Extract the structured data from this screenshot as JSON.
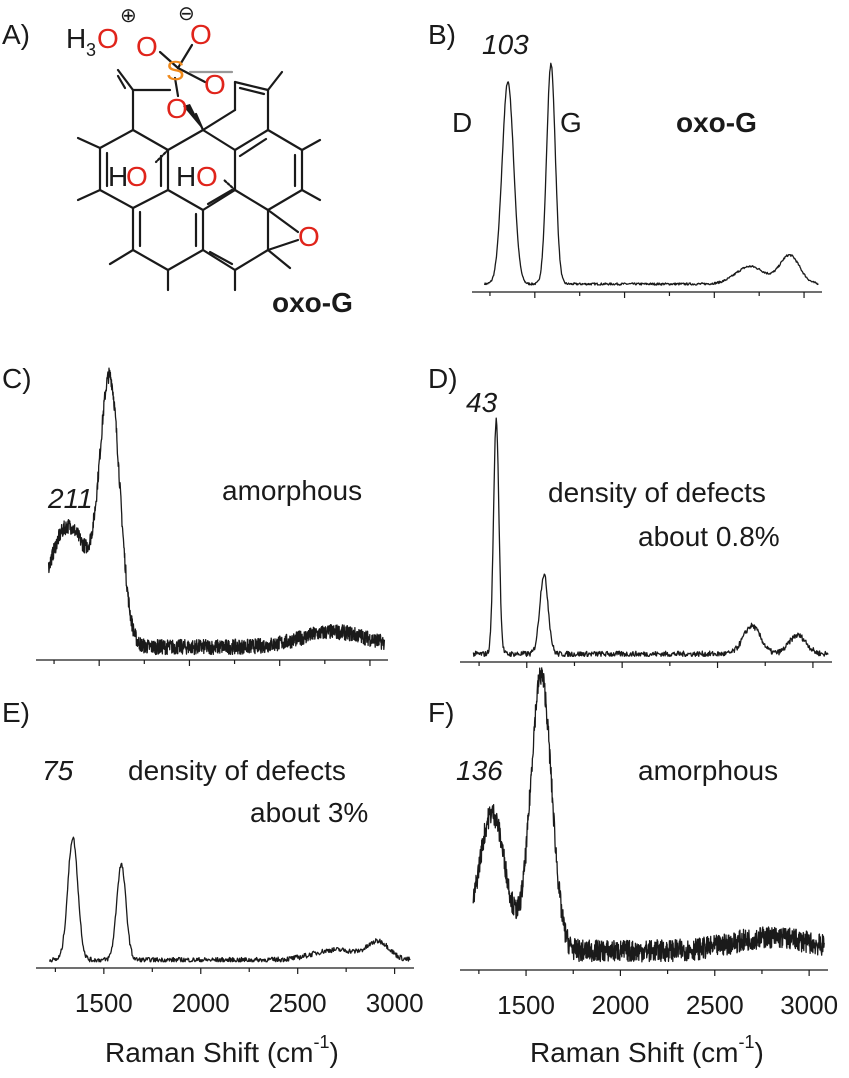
{
  "figure": {
    "panelA": {
      "letter": "A)",
      "h3o_prefix": "H",
      "h3o_sub": "3",
      "h3o_o": "O",
      "plus_sign": "⊕",
      "minus_sign": "⊖",
      "atom_O": "O",
      "atom_S": "S",
      "atom_H": "H",
      "caption": "oxo-G"
    },
    "panelB": {
      "letter": "B)",
      "ratio": "103",
      "d_label": "D",
      "g_label": "G",
      "caption": "oxo-G"
    },
    "panelC": {
      "letter": "C)",
      "ratio": "211",
      "caption": "amorphous"
    },
    "panelD": {
      "letter": "D)",
      "ratio": "43",
      "caption_line1": "density of defects",
      "caption_line2": "about 0.8%"
    },
    "panelE": {
      "letter": "E)",
      "ratio": "75",
      "caption_line1": "density of defects",
      "caption_line2": "about 3%"
    },
    "panelF": {
      "letter": "F)",
      "ratio": "136",
      "caption": "amorphous"
    },
    "x_axis": {
      "ticks": [
        "1500",
        "2000",
        "2500",
        "3000"
      ],
      "label_prefix": "Raman Shift (cm",
      "label_sup": "-1",
      "label_suffix": ")"
    },
    "line_color": "#1a1a1a",
    "oxygen_color": "#e0241b",
    "sulfur_color": "#f08a1c"
  },
  "chart_data": [
    {
      "type": "line",
      "panel": "B",
      "xlim": [
        1150,
        3100
      ],
      "x_unit": "cm-1",
      "peaks": [
        {
          "x": 1350,
          "height": 0.92,
          "width": 32
        },
        {
          "x": 1590,
          "height": 1.0,
          "width": 24
        },
        {
          "x": 2700,
          "height": 0.08,
          "width": 80
        },
        {
          "x": 2920,
          "height": 0.13,
          "width": 55
        }
      ],
      "noise": 0.005,
      "baseline": 0.0
    },
    {
      "type": "line",
      "panel": "C",
      "xlim": [
        1150,
        3100
      ],
      "x_unit": "cm-1",
      "peaks": [
        {
          "x": 1330,
          "height": 0.48,
          "width": 120
        },
        {
          "x": 1560,
          "height": 1.0,
          "width": 55
        },
        {
          "x": 2800,
          "height": 0.06,
          "width": 180
        }
      ],
      "noise": 0.03,
      "baseline": 0.02
    },
    {
      "type": "line",
      "panel": "D",
      "xlim": [
        1150,
        3100
      ],
      "x_unit": "cm-1",
      "peaks": [
        {
          "x": 1340,
          "height": 1.0,
          "width": 14
        },
        {
          "x": 1590,
          "height": 0.34,
          "width": 22
        },
        {
          "x": 2680,
          "height": 0.12,
          "width": 45
        },
        {
          "x": 2920,
          "height": 0.08,
          "width": 45
        }
      ],
      "noise": 0.012,
      "baseline": 0.0
    },
    {
      "type": "line",
      "panel": "E",
      "xlim": [
        1150,
        3100
      ],
      "x_unit": "cm-1",
      "peaks": [
        {
          "x": 1340,
          "height": 0.72,
          "width": 26
        },
        {
          "x": 1590,
          "height": 0.56,
          "width": 24
        },
        {
          "x": 2700,
          "height": 0.06,
          "width": 120
        },
        {
          "x": 2920,
          "height": 0.1,
          "width": 55
        }
      ],
      "noise": 0.015,
      "baseline": 0.0
    },
    {
      "type": "line",
      "panel": "F",
      "xlim": [
        1150,
        3100
      ],
      "x_unit": "cm-1",
      "peaks": [
        {
          "x": 1320,
          "height": 0.5,
          "width": 70
        },
        {
          "x": 1580,
          "height": 1.0,
          "width": 55
        },
        {
          "x": 2800,
          "height": 0.05,
          "width": 200
        }
      ],
      "noise": 0.04,
      "baseline": 0.04
    }
  ]
}
